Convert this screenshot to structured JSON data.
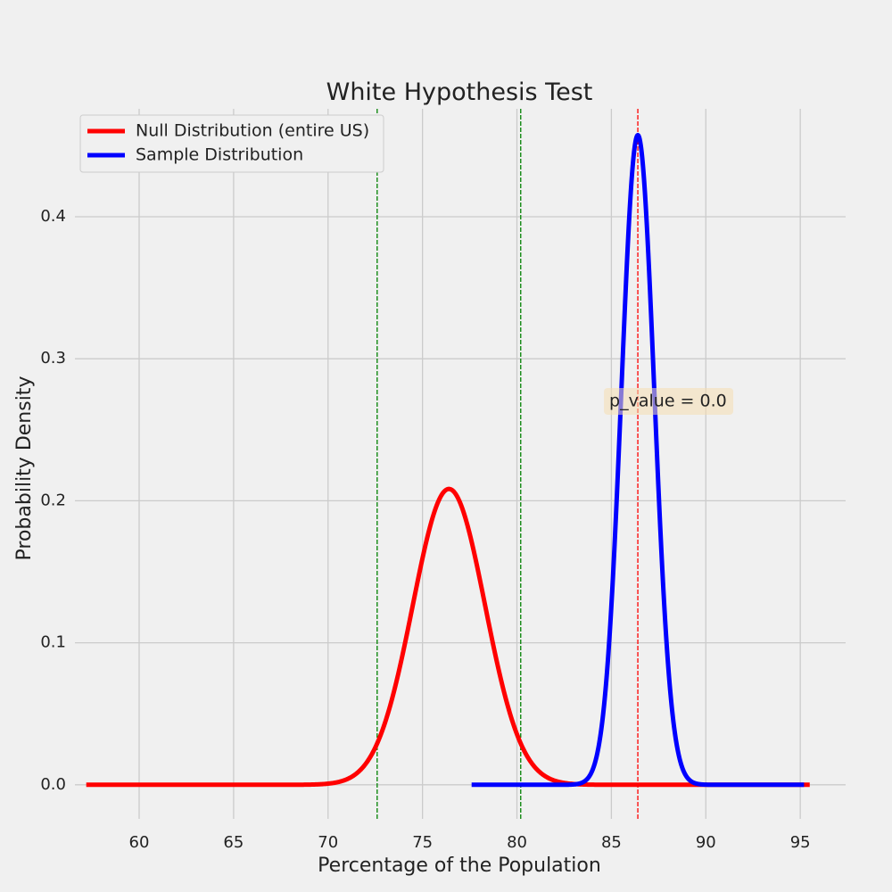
{
  "chart_data": {
    "type": "line",
    "title": "White Hypothesis Test",
    "xlabel": "Percentage of the Population",
    "ylabel": "Probability Density",
    "xlim": [
      56.6,
      97.4
    ],
    "ylim": [
      -0.024,
      0.476
    ],
    "x_ticks": [
      60,
      65,
      70,
      75,
      80,
      85,
      90,
      95
    ],
    "y_ticks": [
      0.0,
      0.1,
      0.2,
      0.3,
      0.4
    ],
    "grid": true,
    "legend_position": "upper-left",
    "series": [
      {
        "name": "Null Distribution (entire US)",
        "color": "#ff0000",
        "distribution": "normal",
        "mean": 76.4,
        "std": 1.915,
        "x_range": [
          57.2,
          95.5
        ]
      },
      {
        "name": "Sample Distribution",
        "color": "#0000ff",
        "distribution": "normal",
        "mean": 86.4,
        "std": 0.872,
        "x_range": [
          77.6,
          95.2
        ]
      }
    ],
    "vlines": [
      {
        "x": 72.6,
        "color": "#008000",
        "style": "dashed"
      },
      {
        "x": 80.2,
        "color": "#008000",
        "style": "dashed"
      },
      {
        "x": 86.4,
        "color": "#ff0000",
        "style": "dashed"
      }
    ],
    "annotation": {
      "text": "p_value = 0.0",
      "x": 86.4,
      "y": 0.27,
      "box_color": "#f5deb3"
    }
  }
}
